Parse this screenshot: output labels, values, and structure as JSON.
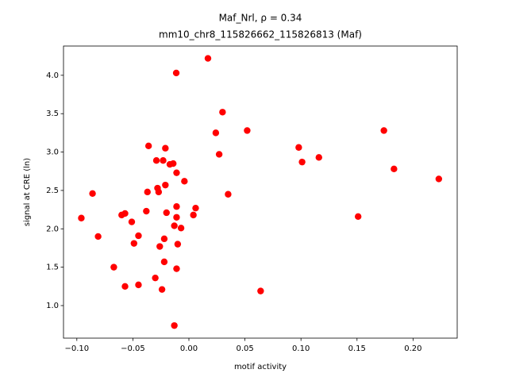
{
  "chart_data": {
    "type": "scatter",
    "title": "Maf_Nrl, ρ = 0.34",
    "subtitle": "mm10_chr8_115826662_115826813 (Maf)",
    "x_label": "motif activity",
    "y_label": "signal at CRE (ln)",
    "color": "#ff0000",
    "x": [
      0.017,
      -0.0113,
      0.03,
      0.024,
      0.052,
      0.174,
      -0.036,
      -0.021,
      0.098,
      0.027,
      0.116,
      0.101,
      -0.029,
      -0.023,
      -0.014,
      -0.017,
      -0.011,
      -0.004,
      -0.021,
      0.183,
      0.223,
      -0.028,
      -0.027,
      -0.037,
      -0.086,
      0.035,
      0.006,
      -0.011,
      -0.057,
      -0.06,
      -0.038,
      -0.02,
      0.004,
      -0.011,
      0.151,
      -0.096,
      -0.051,
      -0.013,
      -0.007,
      -0.081,
      -0.045,
      -0.022,
      -0.049,
      -0.01,
      -0.026,
      -0.067,
      -0.022,
      -0.03,
      -0.011,
      -0.057,
      -0.045,
      -0.024,
      0.064,
      -0.013
    ],
    "values": [
      4.22,
      4.03,
      3.52,
      3.25,
      3.28,
      3.28,
      3.08,
      3.05,
      3.06,
      2.97,
      2.93,
      2.87,
      2.89,
      2.89,
      2.85,
      2.84,
      2.73,
      2.62,
      2.57,
      2.78,
      2.65,
      2.53,
      2.48,
      2.48,
      2.46,
      2.45,
      2.27,
      2.29,
      2.2,
      2.18,
      2.23,
      2.21,
      2.18,
      2.15,
      2.16,
      2.14,
      2.09,
      2.04,
      2.01,
      1.9,
      1.91,
      1.87,
      1.81,
      1.8,
      1.77,
      1.5,
      1.57,
      1.36,
      1.48,
      1.25,
      1.27,
      1.21,
      1.19,
      0.74
    ],
    "xlim": [
      -0.1119,
      0.2394
    ],
    "ylim": [
      0.576,
      4.381
    ],
    "xticks": [
      {
        "value": -0.1,
        "label": "−0.10"
      },
      {
        "value": -0.05,
        "label": "−0.05"
      },
      {
        "value": 0,
        "label": "0.00"
      },
      {
        "value": 0.05,
        "label": "0.05"
      },
      {
        "value": 0.1,
        "label": "0.10"
      },
      {
        "value": 0.15,
        "label": "0.15"
      },
      {
        "value": 0.2,
        "label": "0.20"
      }
    ],
    "yticks": [
      {
        "value": 1,
        "label": "1.0"
      },
      {
        "value": 1.5,
        "label": "1.5"
      },
      {
        "value": 2,
        "label": "2.0"
      },
      {
        "value": 2.5,
        "label": "2.5"
      },
      {
        "value": 3,
        "label": "3.0"
      },
      {
        "value": 3.5,
        "label": "3.5"
      },
      {
        "value": 4,
        "label": "4.0"
      }
    ]
  }
}
